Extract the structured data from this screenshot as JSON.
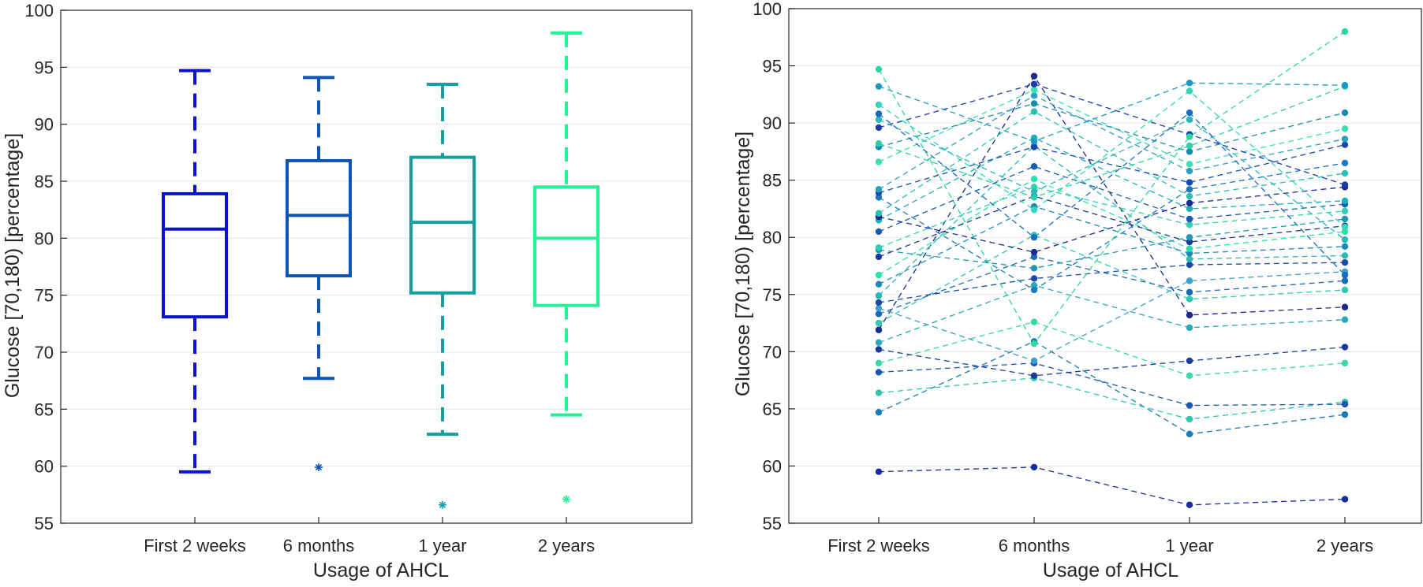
{
  "chart_data": [
    {
      "type": "box",
      "title": "",
      "xlabel": "Usage of AHCL",
      "ylabel": "Glucose [70,180) [percentage]",
      "ylim": [
        55,
        100
      ],
      "yticks": [
        55,
        60,
        65,
        70,
        75,
        80,
        85,
        90,
        95,
        100
      ],
      "categories": [
        "First 2 weeks",
        "6 months",
        "1 year",
        "2 years"
      ],
      "colors": [
        "#0a14c8",
        "#0c55b0",
        "#14a0a0",
        "#28f096"
      ],
      "boxes": [
        {
          "whisker_low": 59.5,
          "q1": 73.1,
          "median": 80.8,
          "q3": 83.9,
          "whisker_high": 94.7,
          "outliers": []
        },
        {
          "whisker_low": 67.7,
          "q1": 76.7,
          "median": 82.0,
          "q3": 86.8,
          "whisker_high": 94.1,
          "outliers": [
            59.9
          ]
        },
        {
          "whisker_low": 62.8,
          "q1": 75.2,
          "median": 81.4,
          "q3": 87.1,
          "whisker_high": 93.5,
          "outliers": [
            56.6
          ]
        },
        {
          "whisker_low": 64.5,
          "q1": 74.1,
          "median": 80.0,
          "q3": 84.5,
          "whisker_high": 98.0,
          "outliers": [
            57.1
          ]
        }
      ]
    },
    {
      "type": "line",
      "title": "",
      "xlabel": "Usage of AHCL",
      "ylabel": "Glucose [70,180) [percentage]",
      "ylim": [
        55,
        100
      ],
      "yticks": [
        55,
        60,
        65,
        70,
        75,
        80,
        85,
        90,
        95,
        100
      ],
      "categories": [
        "First 2 weeks",
        "6 months",
        "1 year",
        "2 years"
      ],
      "series": [
        {
          "color": "#1a2aa0",
          "values": [
            59.5,
            59.9,
            56.6,
            57.1
          ]
        },
        {
          "color": "#1a7ab5",
          "values": [
            64.7,
            70.9,
            62.8,
            64.5
          ]
        },
        {
          "color": "#2bc5b0",
          "values": [
            66.4,
            67.7,
            64.1,
            65.6
          ]
        },
        {
          "color": "#1a55b5",
          "values": [
            68.2,
            69.0,
            65.3,
            65.4
          ]
        },
        {
          "color": "#3ad8a8",
          "values": [
            69.0,
            72.6,
            67.9,
            69.0
          ]
        },
        {
          "color": "#1a3aa0",
          "values": [
            70.2,
            67.9,
            69.2,
            70.4
          ]
        },
        {
          "color": "#2aa8b8",
          "values": [
            70.8,
            75.8,
            72.1,
            72.8
          ]
        },
        {
          "color": "#1a2a90",
          "values": [
            71.9,
            94.1,
            73.2,
            73.9
          ]
        },
        {
          "color": "#30c8b0",
          "values": [
            72.5,
            80.2,
            74.6,
            75.4
          ]
        },
        {
          "color": "#1a6ab5",
          "values": [
            73.3,
            78.3,
            75.2,
            76.2
          ]
        },
        {
          "color": "#3aa0c8",
          "values": [
            73.8,
            69.2,
            76.2,
            77.0
          ]
        },
        {
          "color": "#1a4aa8",
          "values": [
            74.3,
            76.4,
            77.6,
            77.8
          ]
        },
        {
          "color": "#2ab8b0",
          "values": [
            74.9,
            88.0,
            78.1,
            78.4
          ]
        },
        {
          "color": "#1a8ab8",
          "values": [
            75.9,
            82.7,
            78.6,
            79.2
          ]
        },
        {
          "color": "#2ae0a8",
          "values": [
            76.7,
            85.1,
            79.0,
            80.5
          ]
        },
        {
          "color": "#1a3a98",
          "values": [
            78.3,
            83.6,
            79.6,
            81.0
          ]
        },
        {
          "color": "#1a9ab5",
          "values": [
            78.9,
            77.3,
            80.0,
            81.6
          ]
        },
        {
          "color": "#30d0b0",
          "values": [
            79.1,
            84.4,
            81.1,
            82.3
          ]
        },
        {
          "color": "#1a5ab0",
          "values": [
            80.5,
            86.2,
            81.6,
            82.9
          ]
        },
        {
          "color": "#1ab0b8",
          "values": [
            81.5,
            88.7,
            82.5,
            83.2
          ]
        },
        {
          "color": "#1a2a98",
          "values": [
            81.8,
            78.7,
            83.0,
            84.4
          ]
        },
        {
          "color": "#2ac0b0",
          "values": [
            82.1,
            91.0,
            83.6,
            85.6
          ]
        },
        {
          "color": "#1a7ac0",
          "values": [
            83.5,
            75.4,
            84.2,
            86.5
          ]
        },
        {
          "color": "#1a4ab0",
          "values": [
            83.9,
            87.9,
            84.8,
            88.1
          ]
        },
        {
          "color": "#2aa0c0",
          "values": [
            84.2,
            92.4,
            85.8,
            88.6
          ]
        },
        {
          "color": "#3ae0b0",
          "values": [
            86.6,
            92.9,
            86.4,
            89.5
          ]
        },
        {
          "color": "#1a8ab0",
          "values": [
            87.9,
            91.7,
            87.5,
            90.9
          ]
        },
        {
          "color": "#2ad0a8",
          "values": [
            88.2,
            83.5,
            88.0,
            93.2
          ]
        },
        {
          "color": "#1a3aa8",
          "values": [
            89.6,
            93.4,
            89.0,
            84.6
          ]
        },
        {
          "color": "#2ab8b8",
          "values": [
            90.3,
            84.0,
            90.3,
            79.8
          ]
        },
        {
          "color": "#1a6ac0",
          "values": [
            90.8,
            80.0,
            90.9,
            76.7
          ]
        },
        {
          "color": "#30d8b8",
          "values": [
            91.6,
            82.4,
            92.8,
            80.9
          ]
        },
        {
          "color": "#1a9ac0",
          "values": [
            93.2,
            88.4,
            93.5,
            93.3
          ]
        },
        {
          "color": "#2ad8a0",
          "values": [
            94.7,
            70.7,
            88.8,
            98.0
          ]
        }
      ]
    }
  ]
}
